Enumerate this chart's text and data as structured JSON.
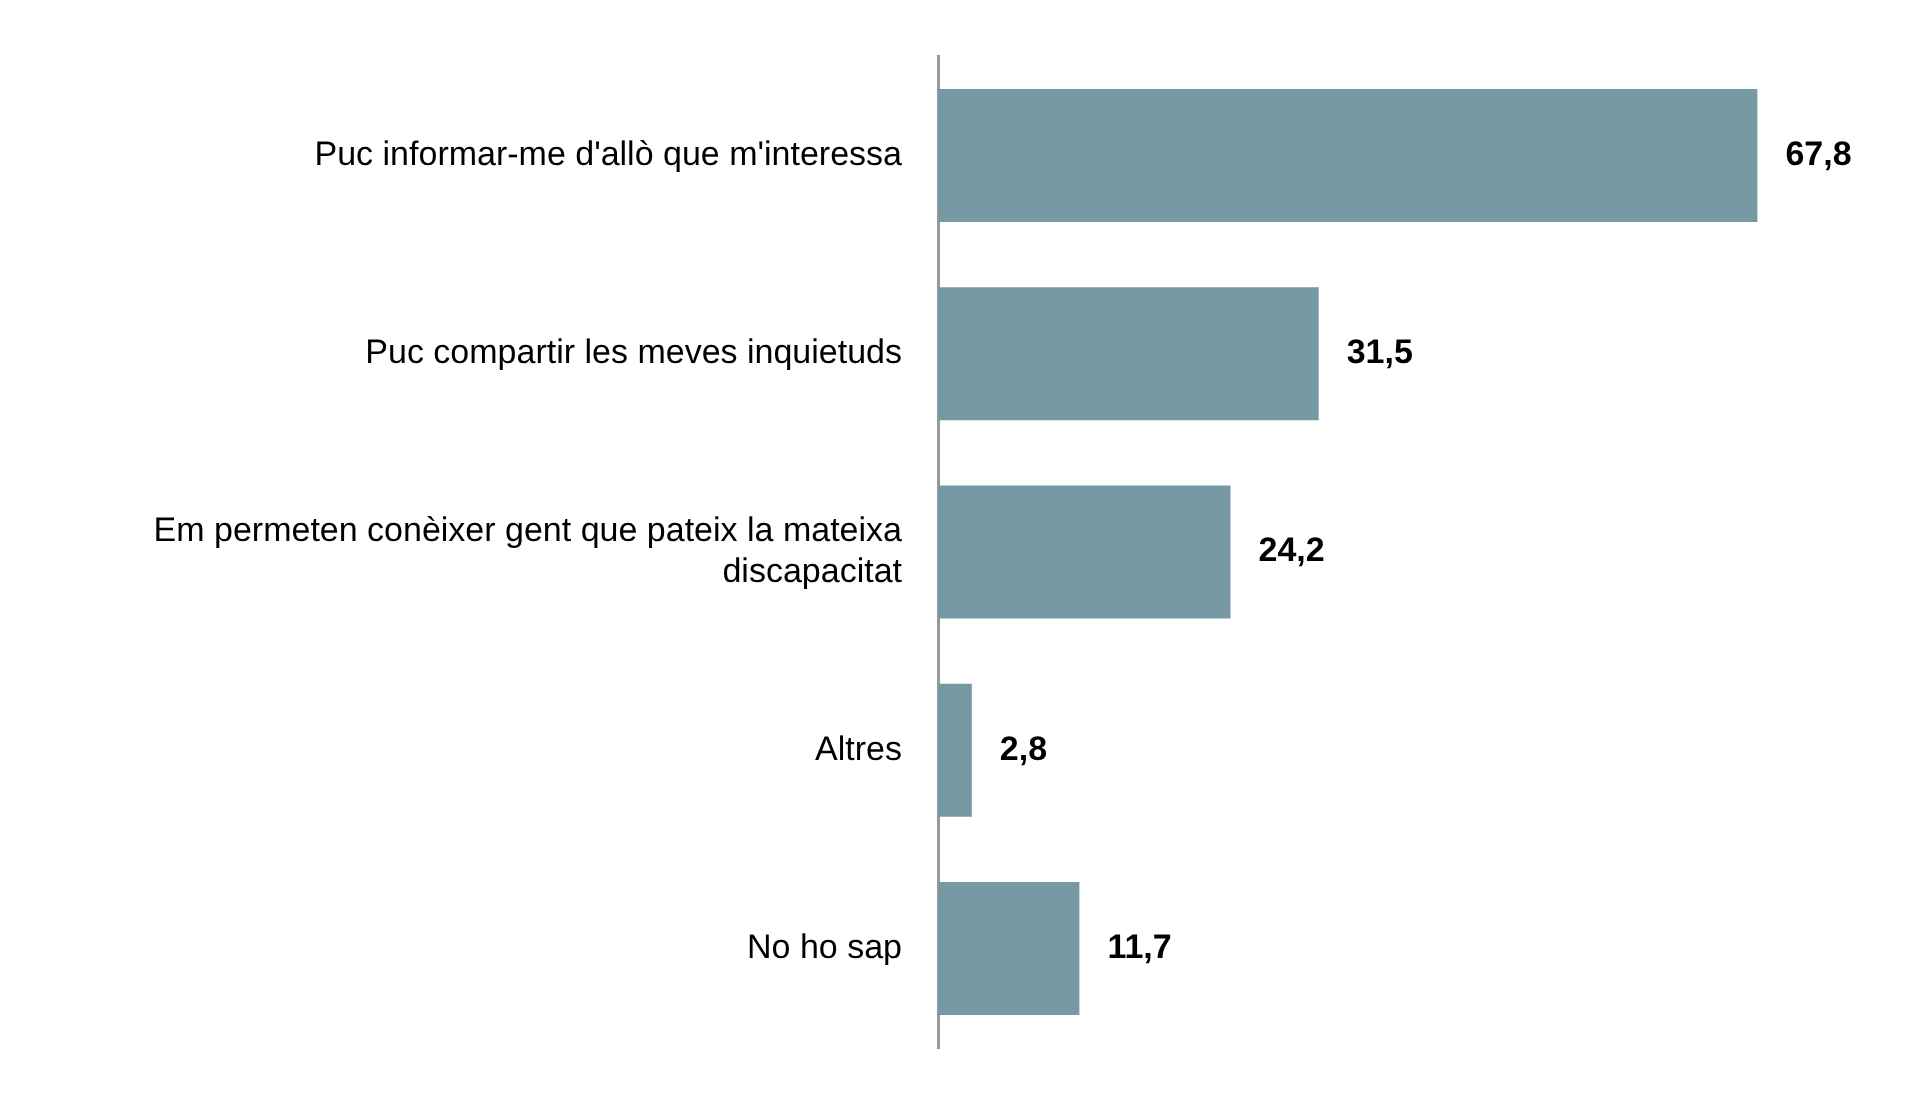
{
  "chart_data": {
    "type": "bar",
    "orientation": "horizontal",
    "categories": [
      "Puc informar-me d'allò que m'interessa",
      "Puc compartir les meves inquietuds",
      "Em permeten conèixer gent que pateix la mateixa discapacitat",
      "Altres",
      "No ho sap"
    ],
    "values": [
      67.8,
      31.5,
      24.2,
      2.8,
      11.7
    ],
    "value_labels": [
      "67,8",
      "31,5",
      "24,2",
      "2,8",
      "11,7"
    ],
    "color": "#7799a3",
    "tick_labels": "y"
  }
}
